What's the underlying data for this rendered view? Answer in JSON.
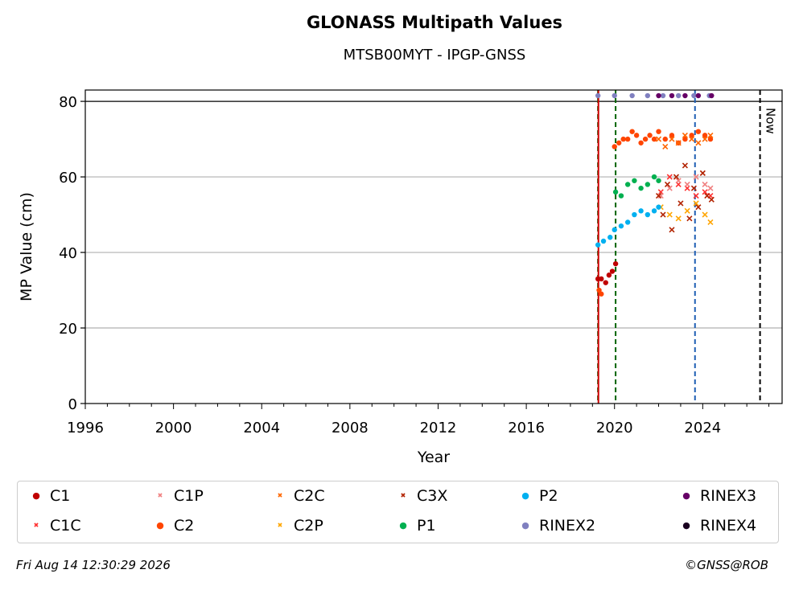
{
  "chart_data": {
    "type": "scatter",
    "title": "GLONASS Multipath Values",
    "subtitle": "MTSB00MYT - IPGP-GNSS",
    "xlabel": "Year",
    "ylabel": "MP Value (cm)",
    "xlim": [
      1996,
      2027.6
    ],
    "ylim": [
      0,
      83
    ],
    "x_ticks": [
      "1996",
      "2000",
      "2004",
      "2008",
      "2012",
      "2016",
      "2020",
      "2024"
    ],
    "y_ticks": [
      "0",
      "20",
      "40",
      "60",
      "80"
    ],
    "grid": "horizontal",
    "legend_placement": "bottom",
    "now_label": "Now",
    "now_year": 2026.6,
    "events": [
      {
        "year": 2019.25,
        "color": "#006400"
      },
      {
        "year": 2019.27,
        "color": "#cc0000"
      },
      {
        "year": 2020.05,
        "color": "#006400"
      },
      {
        "year": 2023.65,
        "color": "#1f5fb4"
      },
      {
        "year": 2026.6,
        "color": "#000000"
      }
    ],
    "series": [
      {
        "name": "C1",
        "color": "#c00000",
        "marker": "dot",
        "x": [
          2019.25,
          2019.4,
          2019.6,
          2019.75,
          2019.9,
          2020.05
        ],
        "y": [
          33,
          33,
          32,
          34,
          35,
          37
        ]
      },
      {
        "name": "C1C",
        "color": "#ff3030",
        "marker": "x",
        "x": [
          2022.1,
          2022.5,
          2022.9,
          2023.3,
          2023.7,
          2024.1,
          2024.35
        ],
        "y": [
          56,
          60,
          58,
          57,
          55,
          56,
          55
        ]
      },
      {
        "name": "C1P",
        "color": "#f08080",
        "marker": "x",
        "x": [
          2022.1,
          2022.5,
          2022.9,
          2023.3,
          2023.7,
          2024.1,
          2024.35
        ],
        "y": [
          55,
          57,
          59,
          58,
          60,
          58,
          57
        ]
      },
      {
        "name": "C2",
        "color": "#ff4500",
        "marker": "dot",
        "x": [
          2019.3,
          2019.4,
          2020.0,
          2020.2,
          2020.4,
          2020.6,
          2020.8,
          2021.0,
          2021.2,
          2021.4,
          2021.6,
          2021.8,
          2022.0,
          2022.3,
          2022.6,
          2022.9,
          2023.2,
          2023.5,
          2023.8,
          2024.1,
          2024.35
        ],
        "y": [
          30,
          29,
          68,
          69,
          70,
          70,
          72,
          71,
          69,
          70,
          71,
          70,
          72,
          70,
          71,
          69,
          70,
          71,
          72,
          71,
          70
        ]
      },
      {
        "name": "C2C",
        "color": "#ff6600",
        "marker": "x",
        "x": [
          2022.0,
          2022.3,
          2022.6,
          2022.9,
          2023.2,
          2023.5,
          2023.8,
          2024.1,
          2024.35
        ],
        "y": [
          70,
          68,
          70,
          69,
          71,
          70,
          69,
          70,
          71
        ]
      },
      {
        "name": "C2P",
        "color": "#ffa500",
        "marker": "x",
        "x": [
          2022.1,
          2022.5,
          2022.9,
          2023.3,
          2023.7,
          2024.1,
          2024.35
        ],
        "y": [
          52,
          50,
          49,
          51,
          53,
          50,
          48
        ]
      },
      {
        "name": "C3X",
        "color": "#b22200",
        "marker": "x",
        "x": [
          2022.0,
          2022.2,
          2022.4,
          2022.6,
          2022.8,
          2023.0,
          2023.2,
          2023.4,
          2023.6,
          2023.8,
          2024.0,
          2024.2,
          2024.4
        ],
        "y": [
          55,
          50,
          58,
          46,
          60,
          53,
          63,
          49,
          57,
          52,
          61,
          55,
          54
        ]
      },
      {
        "name": "P1",
        "color": "#00b050",
        "marker": "dot",
        "x": [
          2020.05,
          2020.3,
          2020.6,
          2020.9,
          2021.2,
          2021.5,
          2021.8,
          2022.0
        ],
        "y": [
          56,
          55,
          58,
          59,
          57,
          58,
          60,
          59
        ]
      },
      {
        "name": "P2",
        "color": "#00b0f0",
        "marker": "dot",
        "x": [
          2019.25,
          2019.5,
          2019.8,
          2020.0,
          2020.3,
          2020.6,
          2020.9,
          2021.2,
          2021.5,
          2021.8,
          2022.0
        ],
        "y": [
          42,
          43,
          44,
          46,
          47,
          48,
          50,
          51,
          50,
          51,
          52
        ]
      },
      {
        "name": "RINEX2",
        "color": "#8080c0",
        "marker": "dot",
        "x": [
          2019.25,
          2020.0,
          2020.8,
          2021.5,
          2022.2,
          2022.9,
          2023.6,
          2024.3
        ],
        "y": [
          81.5,
          81.5,
          81.5,
          81.5,
          81.5,
          81.5,
          81.5,
          81.5
        ]
      },
      {
        "name": "RINEX3",
        "color": "#660066",
        "marker": "dot",
        "x": [
          2022.0,
          2022.6,
          2023.2,
          2023.8,
          2024.4
        ],
        "y": [
          81.5,
          81.5,
          81.5,
          81.5,
          81.5
        ]
      },
      {
        "name": "RINEX4",
        "color": "#1a0020",
        "marker": "dot",
        "x": [],
        "y": []
      }
    ]
  },
  "footer": {
    "date": "Fri Aug 14 12:30:29 2026",
    "copyright": "©GNSS@ROB"
  }
}
